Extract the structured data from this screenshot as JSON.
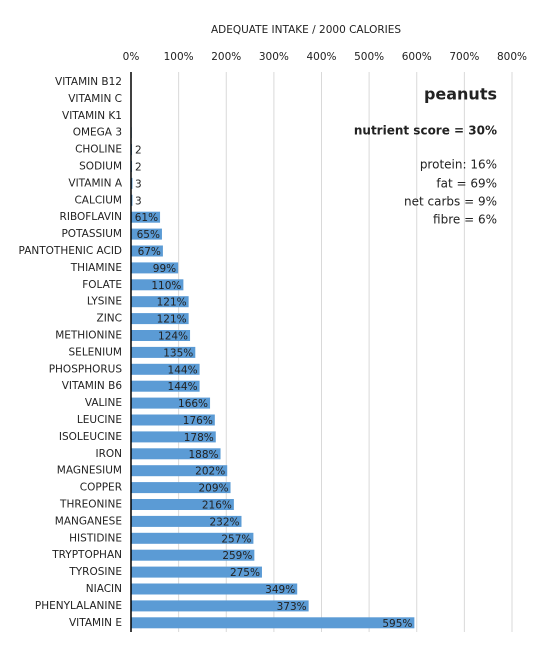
{
  "chart_data": {
    "type": "barh",
    "title": "ADEQUATE INTAKE / 2000 CALORIES",
    "categories": [
      "VITAMIN B12",
      "VITAMIN C",
      "VITAMIN K1",
      "OMEGA 3",
      "CHOLINE",
      "SODIUM",
      "VITAMIN A",
      "CALCIUM",
      "RIBOFLAVIN",
      "POTASSIUM",
      "PANTOTHENIC ACID",
      "THIAMINE",
      "FOLATE",
      "LYSINE",
      "ZINC",
      "METHIONINE",
      "SELENIUM",
      "PHOSPHORUS",
      "VITAMIN B6",
      "VALINE",
      "LEUCINE",
      "ISOLEUCINE",
      "IRON",
      "MAGNESIUM",
      "COPPER",
      "THREONINE",
      "MANGANESE",
      "HISTIDINE",
      "TRYPTOPHAN",
      "TYROSINE",
      "NIACIN",
      "PHENYLALANINE",
      "VITAMIN E"
    ],
    "values": [
      0,
      0,
      1,
      1.5,
      2,
      2,
      3,
      3,
      61,
      65,
      67,
      99,
      110,
      121,
      121,
      124,
      135,
      144,
      144,
      166,
      176,
      178,
      188,
      202,
      209,
      216,
      232,
      257,
      259,
      275,
      349,
      373,
      595
    ],
    "value_labels": [
      null,
      null,
      null,
      null,
      "2",
      "2",
      "3",
      "3",
      "61%",
      "65%",
      "67%",
      "99%",
      "110%",
      "121%",
      "121%",
      "124%",
      "135%",
      "144%",
      "144%",
      "166%",
      "176%",
      "178%",
      "188%",
      "202%",
      "209%",
      "216%",
      "232%",
      "257%",
      "259%",
      "275%",
      "349%",
      "373%",
      "595%"
    ],
    "color": "#5b9bd5",
    "xlim": [
      0,
      800
    ],
    "xticks": [
      {
        "value": 0,
        "label": "0%"
      },
      {
        "value": 100,
        "label": "100%"
      },
      {
        "value": 200,
        "label": "200%"
      },
      {
        "value": 300,
        "label": "300%"
      },
      {
        "value": 400,
        "label": "400%"
      },
      {
        "value": 500,
        "label": "500%"
      },
      {
        "value": 600,
        "label": "600%"
      },
      {
        "value": 700,
        "label": "700%"
      },
      {
        "value": 800,
        "label": "800%"
      }
    ],
    "grid": true,
    "annotations": [
      {
        "text": "peanuts",
        "bold": true,
        "large": true
      },
      {
        "text": "nutrient score = 30%",
        "bold": true
      },
      {
        "text": "protein: 16%"
      },
      {
        "text": "fat = 69%"
      },
      {
        "text": "net carbs = 9%"
      },
      {
        "text": "fibre = 6%"
      }
    ]
  }
}
